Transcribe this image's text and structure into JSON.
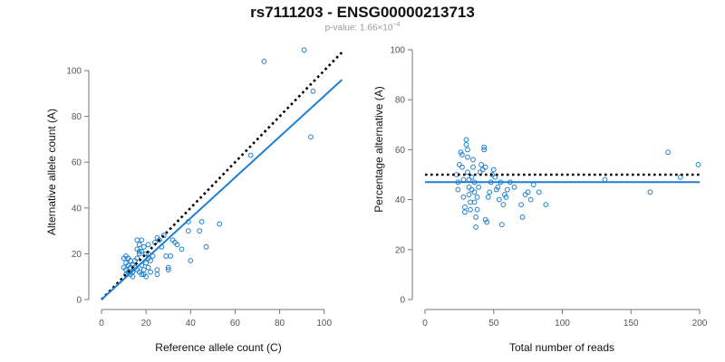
{
  "title": "rs7111203 - ENSG00000213713",
  "subtitle": {
    "prefix": "p-value: 1.66×10",
    "exponent": "−4"
  },
  "colors": {
    "point": "#1f7fd1",
    "fit_line": "#1f7fd1",
    "reference_line": "#000000",
    "axis": "#777777"
  },
  "chart_data": [
    {
      "type": "scatter",
      "xlabel": "Reference allele count (C)",
      "ylabel": "Alternative allele count (A)",
      "xlim": [
        0,
        105
      ],
      "ylim": [
        0,
        100
      ],
      "xticks": [
        0,
        20,
        40,
        60,
        80,
        100
      ],
      "yticks": [
        0,
        20,
        40,
        60,
        80,
        100
      ],
      "grid": false,
      "reference_line": {
        "style": "dotted",
        "x": [
          0,
          108
        ],
        "y": [
          0,
          108
        ]
      },
      "fit_line": {
        "style": "solid",
        "x": [
          0,
          108
        ],
        "y": [
          0,
          96
        ]
      },
      "points": [
        [
          10,
          18
        ],
        [
          11,
          19
        ],
        [
          12,
          18
        ],
        [
          11,
          16
        ],
        [
          12,
          15
        ],
        [
          11,
          13
        ],
        [
          10,
          14
        ],
        [
          12,
          12
        ],
        [
          11,
          11
        ],
        [
          13,
          11
        ],
        [
          14,
          12
        ],
        [
          13,
          14
        ],
        [
          14,
          15
        ],
        [
          13,
          17
        ],
        [
          12,
          18
        ],
        [
          15,
          17
        ],
        [
          16,
          18
        ],
        [
          17,
          20
        ],
        [
          16,
          22
        ],
        [
          17,
          24
        ],
        [
          18,
          26
        ],
        [
          16,
          26
        ],
        [
          17,
          21
        ],
        [
          15,
          14
        ],
        [
          16,
          13
        ],
        [
          17,
          12
        ],
        [
          18,
          11
        ],
        [
          19,
          13
        ],
        [
          18,
          15
        ],
        [
          20,
          16
        ],
        [
          21,
          14
        ],
        [
          22,
          12
        ],
        [
          19,
          11
        ],
        [
          20,
          10
        ],
        [
          21,
          18
        ],
        [
          20,
          20
        ],
        [
          21,
          24
        ],
        [
          19,
          23
        ],
        [
          22,
          17
        ],
        [
          21,
          20
        ],
        [
          24,
          25
        ],
        [
          25,
          27
        ],
        [
          26,
          26
        ],
        [
          27,
          23
        ],
        [
          25,
          13
        ],
        [
          25,
          11
        ],
        [
          29,
          19
        ],
        [
          30,
          14
        ],
        [
          30,
          13
        ],
        [
          31,
          19
        ],
        [
          28,
          28
        ],
        [
          32,
          26
        ],
        [
          33,
          25
        ],
        [
          34,
          24
        ],
        [
          36,
          22
        ],
        [
          39,
          30
        ],
        [
          39,
          34
        ],
        [
          40,
          17
        ],
        [
          44,
          30
        ],
        [
          45,
          34
        ],
        [
          47,
          23
        ],
        [
          53,
          33
        ],
        [
          67,
          63
        ],
        [
          73,
          104
        ],
        [
          91,
          109
        ],
        [
          95,
          91
        ],
        [
          94,
          71
        ],
        [
          14,
          10
        ],
        [
          18,
          21
        ],
        [
          23,
          19
        ]
      ]
    },
    {
      "type": "scatter",
      "xlabel": "Total number of reads",
      "ylabel": "Percentage alternative (A)",
      "xlim": [
        0,
        200
      ],
      "ylim": [
        0,
        100
      ],
      "xticks": [
        0,
        50,
        100,
        150,
        200
      ],
      "yticks": [
        0,
        20,
        40,
        60,
        80,
        100
      ],
      "grid": false,
      "reference_line": {
        "style": "dotted",
        "x": [
          0,
          200
        ],
        "y": [
          50,
          50
        ]
      },
      "fit_line": {
        "style": "solid",
        "x": [
          0,
          200
        ],
        "y": [
          47,
          47
        ]
      },
      "points": [
        [
          23,
          50
        ],
        [
          24,
          47
        ],
        [
          24,
          44
        ],
        [
          25,
          54
        ],
        [
          26,
          59
        ],
        [
          27,
          58
        ],
        [
          27,
          53
        ],
        [
          28,
          48
        ],
        [
          28,
          41
        ],
        [
          29,
          37
        ],
        [
          29,
          35
        ],
        [
          30,
          64
        ],
        [
          30,
          62
        ],
        [
          31,
          60
        ],
        [
          31,
          57
        ],
        [
          31,
          51
        ],
        [
          32,
          48
        ],
        [
          32,
          45
        ],
        [
          32,
          42
        ],
        [
          33,
          39
        ],
        [
          33,
          36
        ],
        [
          34,
          44
        ],
        [
          34,
          49
        ],
        [
          35,
          56
        ],
        [
          35,
          53
        ],
        [
          36,
          47
        ],
        [
          36,
          43
        ],
        [
          36,
          39
        ],
        [
          37,
          29
        ],
        [
          37,
          33
        ],
        [
          38,
          36
        ],
        [
          38,
          41
        ],
        [
          39,
          45
        ],
        [
          40,
          51
        ],
        [
          41,
          54
        ],
        [
          42,
          52
        ],
        [
          43,
          60
        ],
        [
          43,
          61
        ],
        [
          44,
          53
        ],
        [
          44,
          32
        ],
        [
          45,
          31
        ],
        [
          46,
          41
        ],
        [
          47,
          43
        ],
        [
          48,
          47
        ],
        [
          49,
          50
        ],
        [
          50,
          52
        ],
        [
          51,
          49
        ],
        [
          52,
          44
        ],
        [
          53,
          45
        ],
        [
          54,
          40
        ],
        [
          55,
          47
        ],
        [
          56,
          30
        ],
        [
          57,
          38
        ],
        [
          58,
          42
        ],
        [
          59,
          41
        ],
        [
          60,
          44
        ],
        [
          62,
          47
        ],
        [
          65,
          45
        ],
        [
          70,
          38
        ],
        [
          71,
          33
        ],
        [
          73,
          42
        ],
        [
          75,
          43
        ],
        [
          77,
          40
        ],
        [
          79,
          46
        ],
        [
          83,
          43
        ],
        [
          88,
          38
        ],
        [
          131,
          48
        ],
        [
          164,
          43
        ],
        [
          177,
          59
        ],
        [
          186,
          49
        ],
        [
          199,
          54
        ]
      ]
    }
  ]
}
